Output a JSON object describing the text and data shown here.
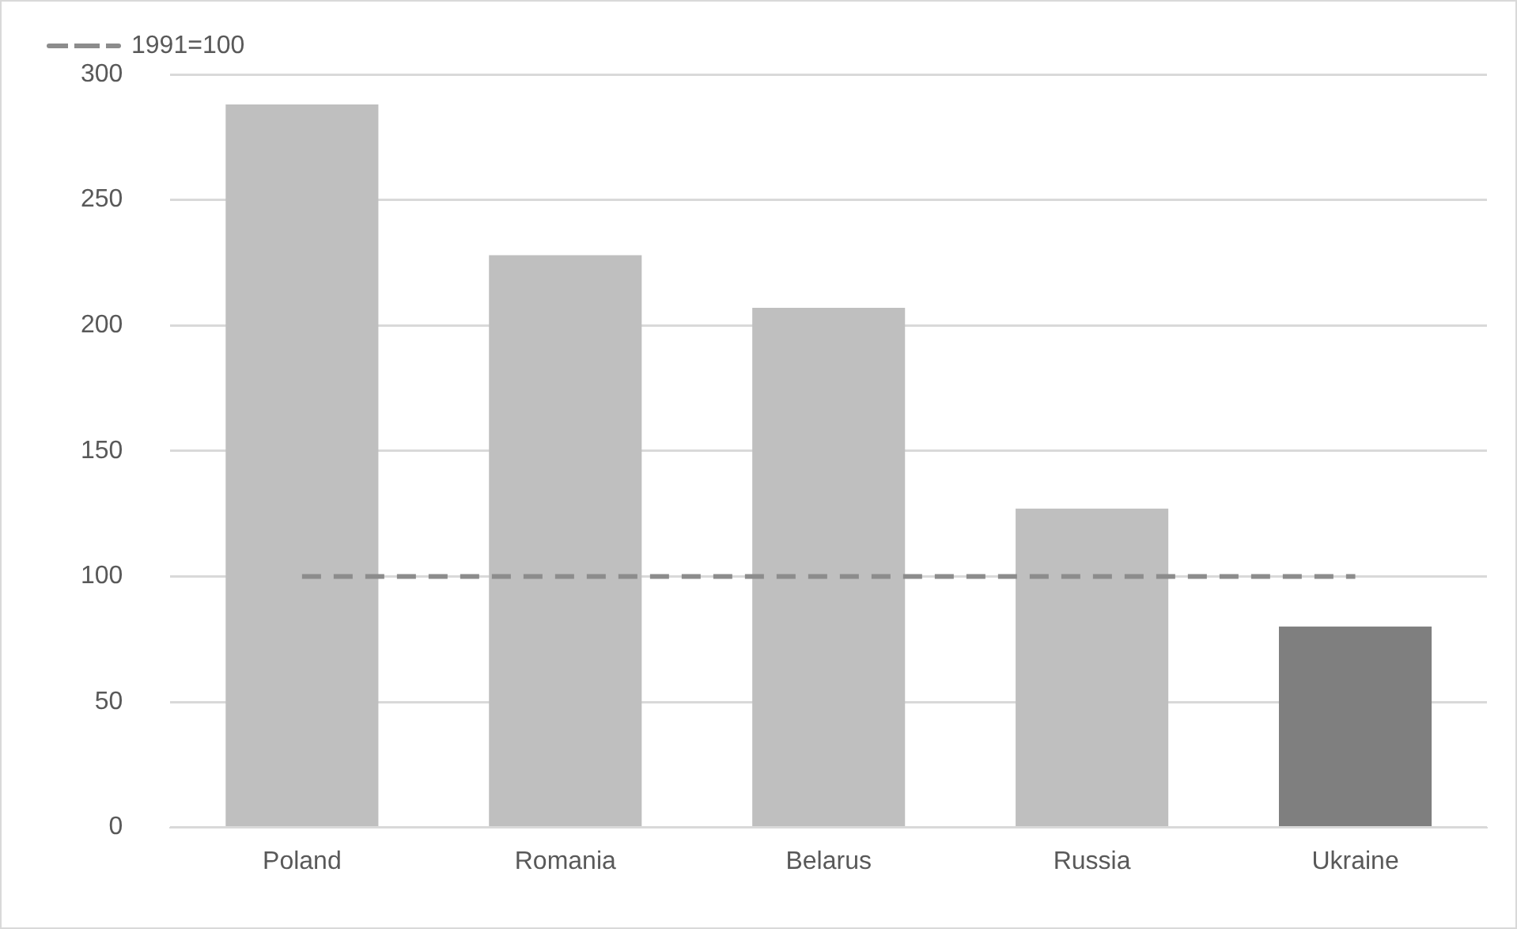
{
  "chart_data": {
    "type": "bar",
    "categories": [
      "Poland",
      "Romania",
      "Belarus",
      "Russia",
      "Ukraine"
    ],
    "series": [
      {
        "colors": [
          "#bfbfbf",
          "#bfbfbf",
          "#bfbfbf",
          "#bfbfbf",
          "#7f7f7f"
        ],
        "values": [
          288,
          228,
          207,
          127,
          80
        ]
      },
      {
        "type": "line",
        "name": "1991=100",
        "color": "#8c8c8c",
        "line_style": "dashed",
        "marker": "none",
        "values": [
          100,
          100,
          100,
          100,
          100
        ]
      }
    ],
    "ylim": [
      0,
      300
    ],
    "yticks": [
      0,
      50,
      100,
      150,
      200,
      250,
      300
    ],
    "grid": "y",
    "legend": "top left"
  }
}
